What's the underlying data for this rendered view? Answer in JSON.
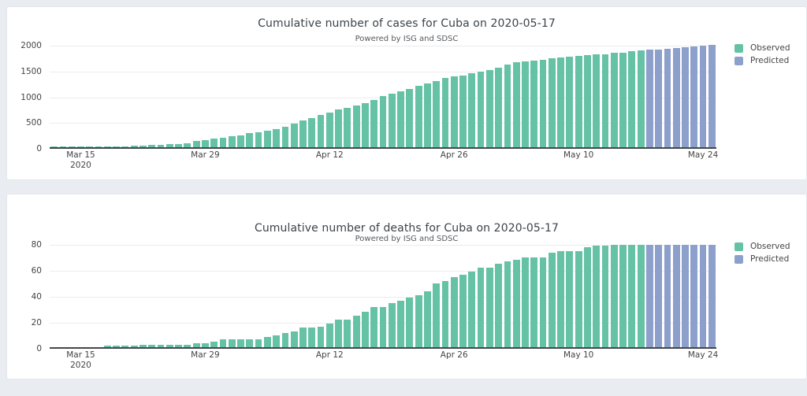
{
  "page": {
    "background_color": "#e9edf2",
    "card_color": "#ffffff"
  },
  "colors": {
    "observed": "#66c2a5",
    "predicted": "#8da0cb",
    "axis_line": "#44484c",
    "gridline": "#ececec",
    "text": "#444444"
  },
  "chart_data": [
    {
      "type": "bar",
      "title": "Cumulative number of cases for Cuba on 2020-05-17",
      "subtitle": "Powered by ISG and SDSC",
      "legend": [
        "Observed",
        "Predicted"
      ],
      "legend_position": "right",
      "grid": true,
      "y_ticks": [
        0,
        500,
        1000,
        1500,
        2000
      ],
      "ylim": [
        0,
        2016
      ],
      "x_start_date": "2020-03-12",
      "x_step_days": 1,
      "x_tick_indices": [
        3,
        17,
        31,
        45,
        59,
        73
      ],
      "x_tick_labels": [
        "Mar 15",
        "Mar 29",
        "Apr 12",
        "Apr 26",
        "May 10",
        "May 24"
      ],
      "x_first_tick_sub": "2020",
      "series": [
        {
          "name": "Observed",
          "color": "#66c2a5",
          "start_date": "2020-03-12",
          "end_date": "2020-05-17",
          "start_index": 0,
          "values": [
            4,
            4,
            4,
            4,
            5,
            7,
            11,
            16,
            21,
            25,
            35,
            40,
            48,
            57,
            67,
            80,
            119,
            139,
            170,
            186,
            212,
            233,
            269,
            288,
            320,
            350,
            396,
            457,
            515,
            564,
            620,
            669,
            726,
            766,
            814,
            862,
            923,
            986,
            1035,
            1087,
            1137,
            1189,
            1235,
            1285,
            1337,
            1369,
            1389,
            1437,
            1467,
            1501,
            1537,
            1611,
            1649,
            1668,
            1685,
            1703,
            1729,
            1741,
            1754,
            1766,
            1783,
            1804,
            1810,
            1830,
            1840,
            1862,
            1872
          ]
        },
        {
          "name": "Predicted",
          "color": "#8da0cb",
          "start_date": "2020-05-18",
          "end_date": "2020-05-25",
          "start_index": 67,
          "values": [
            1887,
            1901,
            1916,
            1930,
            1945,
            1959,
            1973,
            1988
          ]
        }
      ]
    },
    {
      "type": "bar",
      "title": "Cumulative number of deaths for Cuba on 2020-05-17",
      "subtitle": "Powered by ISG and SDSC",
      "legend": [
        "Observed",
        "Predicted"
      ],
      "legend_position": "right",
      "grid": true,
      "y_ticks": [
        0,
        20,
        40,
        60,
        80
      ],
      "ylim": [
        0,
        81.2
      ],
      "x_start_date": "2020-03-12",
      "x_step_days": 1,
      "x_tick_indices": [
        3,
        17,
        31,
        45,
        59,
        73
      ],
      "x_tick_labels": [
        "Mar 15",
        "Mar 29",
        "Apr 12",
        "Apr 26",
        "May 10",
        "May 24"
      ],
      "x_first_tick_sub": "2020",
      "series": [
        {
          "name": "Observed",
          "color": "#66c2a5",
          "start_date": "2020-03-12",
          "end_date": "2020-05-17",
          "start_index": 0,
          "values": [
            0,
            0,
            0,
            0,
            0,
            0,
            1,
            1,
            1,
            1,
            2,
            2,
            2,
            2,
            2,
            2,
            3,
            3,
            4,
            6,
            6,
            6,
            6,
            6,
            8,
            9,
            11,
            12,
            15,
            15,
            16,
            18,
            21,
            21,
            24,
            27,
            31,
            31,
            34,
            36,
            38,
            40,
            43,
            49,
            51,
            54,
            56,
            58,
            61,
            61,
            64,
            66,
            67,
            69,
            69,
            69,
            73,
            74,
            74,
            74,
            77,
            78,
            78,
            79,
            79,
            79,
            79
          ]
        },
        {
          "name": "Predicted",
          "color": "#8da0cb",
          "start_date": "2020-05-18",
          "end_date": "2020-05-25",
          "start_index": 67,
          "values": [
            79,
            79,
            79,
            79,
            79,
            79,
            79,
            79
          ]
        }
      ]
    }
  ]
}
